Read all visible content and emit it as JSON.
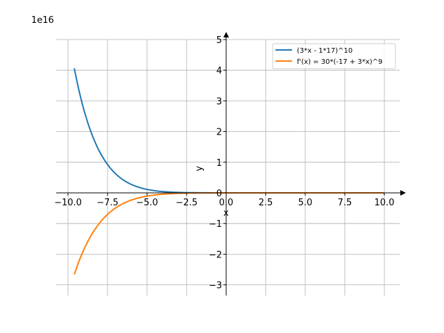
{
  "chart_data": {
    "type": "line",
    "title": "",
    "xlabel": "x",
    "ylabel": "y",
    "y_offset_label": "1e16",
    "xlim": [
      -10.75,
      11
    ],
    "ylim": [
      -3.4,
      5.2
    ],
    "grid": true,
    "legend_position": "top-right",
    "x_ticks": [
      -10,
      -7.5,
      -5,
      -2.5,
      0,
      2.5,
      5,
      7.5,
      10
    ],
    "x_tick_labels": [
      "−10.0",
      "−7.5",
      "−5.0",
      "−2.5",
      "0.0",
      "2.5",
      "5.0",
      "7.5",
      "10.0"
    ],
    "y_ticks": [
      -3,
      -2,
      -1,
      0,
      1,
      2,
      3,
      4,
      5
    ],
    "y_tick_labels": [
      "−3",
      "−2",
      "−1",
      "0",
      "1",
      "2",
      "3",
      "4",
      "5"
    ],
    "x_range": [
      -9.6,
      10
    ],
    "series": [
      {
        "name": "(3*x - 1*17)^10",
        "color": "#1f77b4",
        "expression": "(3*x - 17)^10"
      },
      {
        "name": "f'(x) = 30*(-17 + 3*x)^9",
        "color": "#ff7f0e",
        "expression": "30*(3*x - 17)^9"
      }
    ]
  }
}
